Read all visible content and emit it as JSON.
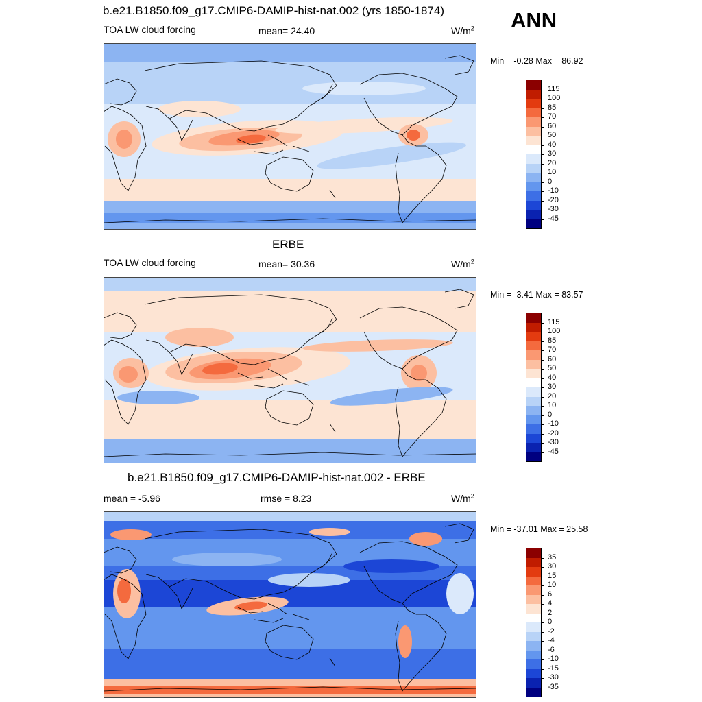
{
  "header": {
    "season": "ANN"
  },
  "panels": [
    {
      "title": "b.e21.B1850.f09_g17.CMIP6-DAMIP-hist-nat.002 (yrs 1850-1874)",
      "left_label": "TOA LW cloud forcing",
      "center_label": "mean=  24.40",
      "units_base": "W/m",
      "units_exp": "2",
      "minmax": "Min =  -0.28 Max =  86.92",
      "levels": [
        "115",
        "100",
        "85",
        "70",
        "60",
        "50",
        "40",
        "30",
        "20",
        "10",
        "0",
        "-10",
        "-20",
        "-30",
        "-45"
      ],
      "colors": [
        "#8b0000",
        "#c01c00",
        "#e33b10",
        "#f46a3e",
        "#fa9872",
        "#fcbfa1",
        "#fde4d3",
        "#ffffff",
        "#dbe9fb",
        "#b8d3f7",
        "#8cb4f2",
        "#6396ee",
        "#3d6fe6",
        "#1c46d6",
        "#0a22b0",
        "#000080"
      ]
    },
    {
      "title": "ERBE",
      "left_label": "TOA LW cloud forcing",
      "center_label": "mean=  30.36",
      "units_base": "W/m",
      "units_exp": "2",
      "minmax": "Min =  -3.41 Max =  83.57",
      "levels": [
        "115",
        "100",
        "85",
        "70",
        "60",
        "50",
        "40",
        "30",
        "20",
        "10",
        "0",
        "-10",
        "-20",
        "-30",
        "-45"
      ],
      "colors": [
        "#8b0000",
        "#c01c00",
        "#e33b10",
        "#f46a3e",
        "#fa9872",
        "#fcbfa1",
        "#fde4d3",
        "#ffffff",
        "#dbe9fb",
        "#b8d3f7",
        "#8cb4f2",
        "#6396ee",
        "#3d6fe6",
        "#1c46d6",
        "#0a22b0",
        "#000080"
      ]
    },
    {
      "title": "b.e21.B1850.f09_g17.CMIP6-DAMIP-hist-nat.002 - ERBE",
      "left_label": "mean =  -5.96",
      "center_label": "rmse =   8.23",
      "units_base": "W/m",
      "units_exp": "2",
      "minmax": "Min = -37.01 Max =  25.58",
      "levels": [
        "35",
        "30",
        "15",
        "10",
        "6",
        "4",
        "2",
        "0",
        "-2",
        "-4",
        "-6",
        "-10",
        "-15",
        "-30",
        "-35"
      ],
      "colors": [
        "#8b0000",
        "#c01c00",
        "#e33b10",
        "#f46a3e",
        "#fa9872",
        "#fcbfa1",
        "#fde4d3",
        "#ffffff",
        "#dbe9fb",
        "#b8d3f7",
        "#8cb4f2",
        "#6396ee",
        "#3d6fe6",
        "#1c46d6",
        "#0a22b0",
        "#000080"
      ]
    }
  ],
  "chart_data": [
    {
      "type": "heatmap",
      "title": "b.e21.B1850.f09_g17.CMIP6-DAMIP-hist-nat.002 (yrs 1850-1874)",
      "variable": "TOA LW cloud forcing",
      "units": "W/m2",
      "mean": 24.4,
      "min": -0.28,
      "max": 86.92,
      "contour_levels": [
        -45,
        -30,
        -20,
        -10,
        0,
        10,
        20,
        30,
        40,
        50,
        60,
        70,
        85,
        100,
        115
      ]
    },
    {
      "type": "heatmap",
      "title": "ERBE",
      "variable": "TOA LW cloud forcing",
      "units": "W/m2",
      "mean": 30.36,
      "min": -3.41,
      "max": 83.57,
      "contour_levels": [
        -45,
        -30,
        -20,
        -10,
        0,
        10,
        20,
        30,
        40,
        50,
        60,
        70,
        85,
        100,
        115
      ]
    },
    {
      "type": "heatmap",
      "title": "b.e21.B1850.f09_g17.CMIP6-DAMIP-hist-nat.002 - ERBE",
      "units": "W/m2",
      "mean": -5.96,
      "rmse": 8.23,
      "min": -37.01,
      "max": 25.58,
      "contour_levels": [
        -35,
        -30,
        -15,
        -10,
        -6,
        -4,
        -2,
        0,
        2,
        4,
        6,
        10,
        15,
        30,
        35
      ]
    }
  ]
}
